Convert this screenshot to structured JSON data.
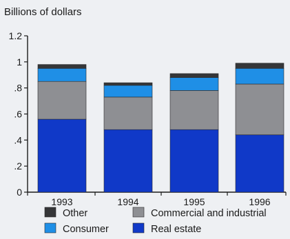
{
  "chart_data": {
    "type": "bar",
    "stacked": true,
    "ylabel": "Billions of dollars",
    "ylim": [
      0,
      1.2
    ],
    "y_ticks": [
      0,
      0.2,
      0.4,
      0.6,
      0.8,
      1.0,
      1.2
    ],
    "y_tick_labels": [
      "0",
      ".2",
      ".4",
      ".6",
      ".8",
      "1",
      "1.2"
    ],
    "categories": [
      "1993",
      "1994",
      "1995",
      "1996"
    ],
    "series": [
      {
        "name": "Real estate",
        "color": "#1039c8",
        "values": [
          0.56,
          0.48,
          0.48,
          0.44
        ]
      },
      {
        "name": "Commercial and industrial",
        "color": "#8e8f93",
        "values": [
          0.29,
          0.25,
          0.3,
          0.39
        ]
      },
      {
        "name": "Consumer",
        "color": "#1f8fe6",
        "values": [
          0.1,
          0.09,
          0.1,
          0.12
        ]
      },
      {
        "name": "Other",
        "color": "#353638",
        "values": [
          0.03,
          0.02,
          0.03,
          0.04
        ]
      }
    ],
    "legend": {
      "placement": "bottom",
      "order": [
        "Other",
        "Commercial and industrial",
        "Consumer",
        "Real estate"
      ]
    },
    "grid": false
  }
}
